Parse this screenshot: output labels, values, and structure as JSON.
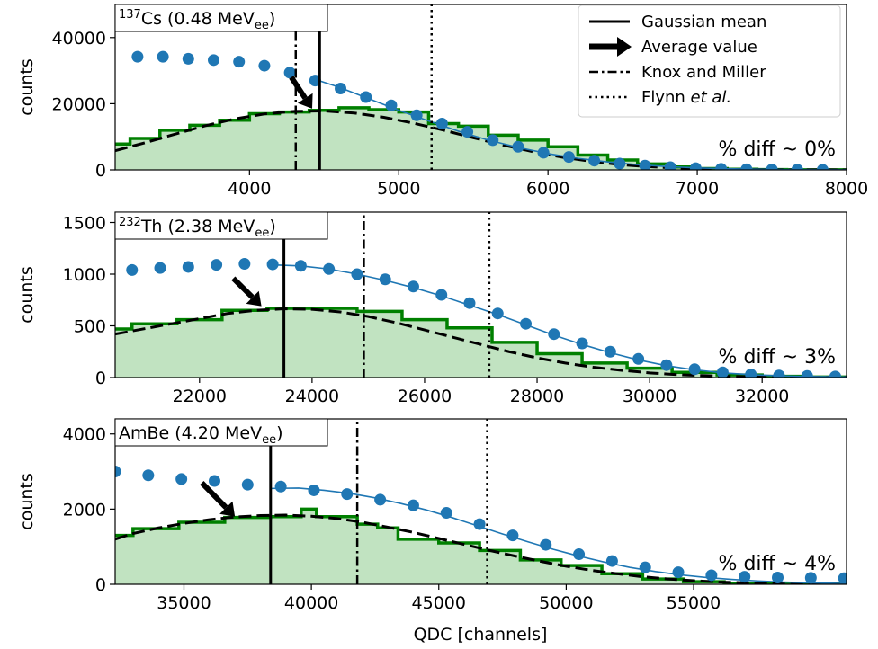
{
  "colors": {
    "hist_line": "#008000",
    "hist_fill": "#c1e3c1",
    "points": "#1f77b4",
    "curve": "#1f77b4",
    "fit": "#000000"
  },
  "legend": {
    "placement": "upper-right of top panel",
    "entries": [
      {
        "label": "Gaussian mean",
        "style": "solid"
      },
      {
        "label": "Average value",
        "style": "arrow"
      },
      {
        "label": "Knox and Miller",
        "style": "dashdot"
      },
      {
        "label": "Flynn ",
        "italic": "et al.",
        "style": "dotted"
      }
    ]
  },
  "xlabel": "QDC [channels]",
  "ylabel": "counts",
  "chart_data": [
    {
      "type": "line",
      "title_sup": "137",
      "title_main": "Cs (0.48 MeV",
      "title_sub": "ee",
      "title_end": ")",
      "diff_text": "% diff ~ 0%",
      "xlim": [
        3100,
        8000
      ],
      "ylim": [
        0,
        50000
      ],
      "xticks": [
        4000,
        5000,
        6000,
        7000,
        8000
      ],
      "yticks": [
        0,
        20000,
        40000
      ],
      "gaussian_mean": 4470,
      "knox_miller": 4310,
      "flynn": 5220,
      "arrow": {
        "from": [
          4280,
          28000
        ],
        "to": [
          4420,
          18500
        ]
      },
      "points": {
        "x": [
          3250,
          3420,
          3590,
          3760,
          3930,
          4100,
          4270,
          4440,
          4610,
          4780,
          4950,
          5120,
          5290,
          5460,
          5630,
          5800,
          5970,
          6140,
          6310,
          6480,
          6650,
          6820,
          6990,
          7160,
          7330,
          7500,
          7670,
          7840
        ],
        "y": [
          34200,
          34200,
          33600,
          33200,
          32700,
          31500,
          29400,
          27000,
          24600,
          22000,
          19500,
          16500,
          14000,
          11500,
          9000,
          7000,
          5200,
          3900,
          2800,
          1900,
          1300,
          800,
          500,
          300,
          180,
          100,
          50,
          20
        ]
      },
      "curve": {
        "x": [
          4450,
          4600,
          4800,
          5000,
          5200,
          5400,
          5600,
          5800,
          6000,
          6200,
          6400,
          6600,
          6800,
          7000,
          7200,
          7400,
          7600,
          7800,
          8000
        ],
        "y": [
          27200,
          25000,
          21500,
          18000,
          14800,
          11700,
          9000,
          6800,
          4900,
          3500,
          2400,
          1600,
          1000,
          600,
          350,
          200,
          100,
          50,
          20
        ]
      },
      "hist": {
        "edges": [
          3100,
          3200,
          3400,
          3600,
          3800,
          4000,
          4200,
          4400,
          4600,
          4800,
          5000,
          5200,
          5400,
          5600,
          5800,
          6000,
          6200,
          6400,
          6600,
          6800,
          7000,
          7200,
          7400,
          7600,
          7800,
          8000
        ],
        "counts": [
          7800,
          9500,
          12000,
          13500,
          15000,
          17000,
          17500,
          18000,
          18800,
          18200,
          17500,
          14000,
          13200,
          10500,
          9000,
          7000,
          4500,
          3000,
          1800,
          900,
          400,
          200,
          100,
          50,
          20
        ]
      },
      "fit": {
        "x": [
          3100,
          3300,
          3500,
          3700,
          3900,
          4100,
          4300,
          4500,
          4700,
          4900,
          5100,
          5300,
          5500,
          5700,
          5900,
          6100,
          6300,
          6500,
          6700,
          6900,
          7100,
          7300,
          7500,
          7700,
          8000
        ],
        "y": [
          5800,
          8200,
          10800,
          13300,
          15400,
          16900,
          17700,
          17800,
          17200,
          15900,
          14100,
          12000,
          9700,
          7500,
          5500,
          3800,
          2500,
          1500,
          900,
          500,
          250,
          120,
          60,
          30,
          10
        ]
      }
    },
    {
      "type": "line",
      "title_sup": "232",
      "title_main": "Th (2.38 MeV",
      "title_sub": "ee",
      "title_end": ")",
      "diff_text": "% diff ~ 3%",
      "xlim": [
        20500,
        33500
      ],
      "ylim": [
        0,
        1600
      ],
      "xticks": [
        22000,
        24000,
        26000,
        28000,
        30000,
        32000
      ],
      "yticks": [
        0,
        500,
        1000,
        1500
      ],
      "gaussian_mean": 23500,
      "knox_miller": 24920,
      "flynn": 27150,
      "arrow": {
        "from": [
          22600,
          960
        ],
        "to": [
          23100,
          690
        ]
      },
      "points": {
        "x": [
          20800,
          21300,
          21800,
          22300,
          22800,
          23300,
          23800,
          24300,
          24800,
          25300,
          25800,
          26300,
          26800,
          27300,
          27800,
          28300,
          28800,
          29300,
          29800,
          30300,
          30800,
          31300,
          31800,
          32300,
          32800,
          33300
        ],
        "y": [
          1040,
          1060,
          1070,
          1090,
          1100,
          1095,
          1080,
          1050,
          1000,
          950,
          880,
          800,
          720,
          620,
          520,
          420,
          330,
          250,
          180,
          120,
          80,
          50,
          30,
          20,
          15,
          10
        ]
      },
      "curve": {
        "x": [
          23300,
          23800,
          24300,
          24800,
          25300,
          25800,
          26300,
          26800,
          27300,
          27800,
          28300,
          28800,
          29300,
          29800,
          30300,
          30800,
          31300,
          31800,
          32300,
          32800,
          33500
        ],
        "y": [
          1090,
          1080,
          1050,
          1000,
          940,
          870,
          790,
          700,
          610,
          510,
          410,
          320,
          240,
          170,
          115,
          75,
          45,
          28,
          17,
          10,
          5
        ]
      },
      "hist": {
        "edges": [
          20500,
          20800,
          21600,
          22400,
          23200,
          24000,
          24800,
          25600,
          26400,
          27200,
          28000,
          28800,
          29600,
          30400,
          31200,
          32000,
          32800,
          33500
        ],
        "counts": [
          470,
          520,
          560,
          650,
          670,
          670,
          640,
          560,
          480,
          340,
          230,
          140,
          90,
          50,
          25,
          12,
          5
        ]
      },
      "fit": {
        "x": [
          20500,
          21000,
          21500,
          22000,
          22500,
          23000,
          23500,
          24000,
          24500,
          25000,
          25500,
          26000,
          26500,
          27000,
          27500,
          28000,
          28500,
          29000,
          29500,
          30000,
          30500,
          31000,
          31500,
          32000,
          33500
        ],
        "y": [
          420,
          470,
          520,
          570,
          620,
          650,
          665,
          660,
          635,
          590,
          530,
          460,
          390,
          320,
          250,
          190,
          140,
          100,
          70,
          45,
          28,
          18,
          10,
          6,
          2
        ]
      }
    },
    {
      "type": "line",
      "title_main": "AmBe (4.20 MeV",
      "title_sub": "ee",
      "title_end": ")",
      "diff_text": "% diff ~ 4%",
      "xlim": [
        32300,
        61000
      ],
      "ylim": [
        0,
        4400
      ],
      "xticks": [
        35000,
        40000,
        45000,
        50000,
        55000
      ],
      "yticks": [
        0,
        2000,
        4000
      ],
      "gaussian_mean": 38400,
      "knox_miller": 41800,
      "flynn": 46900,
      "arrow": {
        "from": [
          35700,
          2700
        ],
        "to": [
          37000,
          1800
        ]
      },
      "points": {
        "x": [
          32300,
          33600,
          34900,
          36200,
          37500,
          38800,
          40100,
          41400,
          42700,
          44000,
          45300,
          46600,
          47900,
          49200,
          50500,
          51800,
          53100,
          54400,
          55700,
          57000,
          58300,
          59600,
          60900
        ],
        "y": [
          3000,
          2900,
          2800,
          2750,
          2650,
          2600,
          2500,
          2400,
          2250,
          2100,
          1900,
          1600,
          1300,
          1050,
          800,
          620,
          450,
          320,
          240,
          200,
          180,
          170,
          160
        ]
      },
      "curve": {
        "x": [
          38400,
          39500,
          40500,
          41500,
          42500,
          43500,
          44500,
          45500,
          46500,
          47500,
          48500,
          49500,
          50500,
          51500,
          52500,
          53500,
          54500,
          55500,
          56500,
          57500,
          58500,
          59500,
          61000
        ],
        "y": [
          2550,
          2560,
          2500,
          2420,
          2300,
          2150,
          1980,
          1780,
          1560,
          1340,
          1130,
          930,
          750,
          590,
          450,
          340,
          250,
          180,
          130,
          90,
          60,
          40,
          20
        ]
      },
      "hist": {
        "edges": [
          32300,
          33000,
          34800,
          36600,
          38400,
          39600,
          40200,
          41000,
          41800,
          42600,
          43400,
          45000,
          46600,
          48200,
          49800,
          51400,
          53000,
          54600,
          56200,
          57800,
          59400,
          61000
        ],
        "counts": [
          1300,
          1480,
          1650,
          1780,
          1800,
          2000,
          1800,
          1800,
          1600,
          1500,
          1200,
          1100,
          900,
          650,
          500,
          280,
          140,
          70,
          30,
          10,
          5
        ]
      },
      "fit": {
        "x": [
          32300,
          33000,
          34000,
          35000,
          36000,
          37000,
          38000,
          39000,
          40000,
          41000,
          42000,
          43000,
          44000,
          45000,
          46000,
          47000,
          48000,
          49000,
          50000,
          51000,
          52000,
          53000,
          54000,
          55000,
          56000,
          58000,
          61000
        ],
        "y": [
          1200,
          1350,
          1500,
          1620,
          1720,
          1790,
          1830,
          1840,
          1810,
          1750,
          1650,
          1520,
          1380,
          1220,
          1060,
          900,
          750,
          610,
          480,
          370,
          280,
          200,
          140,
          95,
          60,
          25,
          5
        ]
      }
    }
  ]
}
